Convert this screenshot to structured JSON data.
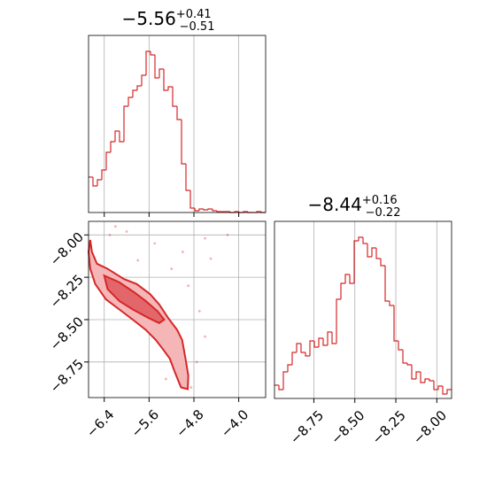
{
  "chart_data": [
    {
      "type": "histogram",
      "title": "−5.56",
      "title_upper": "+0.41",
      "title_lower": "−0.51",
      "color": "#d62728",
      "bins": [
        -6.68,
        -6.601,
        -6.522,
        -6.443,
        -6.364,
        -6.285,
        -6.206,
        -6.127,
        -6.048,
        -5.969,
        -5.89,
        -5.811,
        -5.732,
        -5.653,
        -5.574,
        -5.495,
        -5.416,
        -5.337,
        -5.258,
        -5.179,
        -5.1,
        -5.021,
        -4.942,
        -4.863,
        -4.784,
        -4.705,
        -4.626,
        -4.547,
        -4.468,
        -4.389,
        -4.31,
        -4.231,
        -4.152,
        -4.073,
        -3.994,
        -3.915,
        -3.836,
        -3.757,
        -3.678,
        -3.599,
        -3.52
      ],
      "counts": [
        40,
        30,
        37,
        48,
        68,
        80,
        92,
        80,
        120,
        130,
        138,
        143,
        155,
        182,
        178,
        152,
        162,
        138,
        142,
        120,
        105,
        55,
        25,
        5,
        2,
        4,
        3,
        4,
        2,
        1,
        1,
        1,
        0,
        1,
        0,
        1,
        0,
        0,
        1,
        0
      ],
      "xlim": [
        -6.68,
        -3.52
      ],
      "ylim": [
        0,
        200
      ],
      "xticks": [
        -6.4,
        -5.6,
        -4.8,
        -4.0
      ],
      "grid": true
    },
    {
      "type": "contour",
      "color": "#d62728",
      "contours": [
        {
          "x": [
            -6.65,
            -6.62,
            -6.53,
            -6.34,
            -6.05,
            -5.82,
            -5.58,
            -5.42,
            -5.26,
            -5.1,
            -5.01,
            -4.95,
            -4.9,
            -4.91,
            -5.03,
            -5.14,
            -5.23,
            -5.34,
            -5.48,
            -5.66,
            -5.89,
            -6.13,
            -6.37,
            -6.56,
            -6.65,
            -6.68
          ],
          "y": [
            -8.03,
            -8.1,
            -8.17,
            -8.2,
            -8.26,
            -8.29,
            -8.35,
            -8.41,
            -8.49,
            -8.56,
            -8.62,
            -8.73,
            -8.83,
            -8.91,
            -8.9,
            -8.81,
            -8.73,
            -8.68,
            -8.62,
            -8.56,
            -8.5,
            -8.44,
            -8.38,
            -8.29,
            -8.2,
            -8.1
          ]
        },
        {
          "x": [
            -6.4,
            -6.13,
            -5.86,
            -5.66,
            -5.45,
            -5.33,
            -5.42,
            -5.61,
            -5.89,
            -6.13,
            -6.34
          ],
          "y": [
            -8.24,
            -8.28,
            -8.34,
            -8.39,
            -8.45,
            -8.5,
            -8.52,
            -8.49,
            -8.44,
            -8.39,
            -8.32
          ]
        }
      ],
      "points": {
        "x": [
          -6.0,
          -5.5,
          -5.0,
          -4.6,
          -4.2,
          -5.8,
          -5.2,
          -4.9,
          -4.7,
          -4.6,
          -4.75,
          -4.85,
          -5.3,
          -6.3,
          -6.2,
          -4.5
        ],
        "y": [
          -7.98,
          -8.05,
          -8.1,
          -8.02,
          -8.0,
          -8.15,
          -8.2,
          -8.3,
          -8.45,
          -8.6,
          -8.75,
          -8.9,
          -8.85,
          -8.0,
          -7.95,
          -8.14
        ]
      },
      "xlim": [
        -6.68,
        -3.52
      ],
      "ylim": [
        -8.96,
        -7.92
      ],
      "xticks": [
        {
          "value": -6.4,
          "label": "−6.4"
        },
        {
          "value": -5.6,
          "label": "−5.6"
        },
        {
          "value": -4.8,
          "label": "−4.8"
        },
        {
          "value": -4.0,
          "label": "−4.0"
        }
      ],
      "yticks": [
        {
          "value": -8.0,
          "label": "−8.00"
        },
        {
          "value": -8.25,
          "label": "−8.25"
        },
        {
          "value": -8.5,
          "label": "−8.50"
        },
        {
          "value": -8.75,
          "label": "−8.75"
        }
      ],
      "grid": true
    },
    {
      "type": "histogram",
      "title": "−8.44",
      "title_upper": "+0.16",
      "title_lower": "−0.22",
      "color": "#d62728",
      "bins": [
        -8.99,
        -8.963,
        -8.936,
        -8.909,
        -8.882,
        -8.855,
        -8.828,
        -8.801,
        -8.774,
        -8.747,
        -8.72,
        -8.693,
        -8.666,
        -8.639,
        -8.612,
        -8.585,
        -8.558,
        -8.531,
        -8.504,
        -8.477,
        -8.45,
        -8.423,
        -8.396,
        -8.369,
        -8.342,
        -8.315,
        -8.288,
        -8.261,
        -8.234,
        -8.207,
        -8.18,
        -8.153,
        -8.126,
        -8.099,
        -8.072,
        -8.045,
        -8.018,
        -7.991,
        -7.964,
        -7.937,
        -7.91
      ],
      "counts": [
        15,
        10,
        30,
        38,
        52,
        62,
        52,
        48,
        65,
        58,
        68,
        60,
        75,
        62,
        112,
        130,
        140,
        130,
        178,
        182,
        175,
        160,
        170,
        158,
        150,
        110,
        105,
        65,
        55,
        40,
        38,
        22,
        30,
        18,
        22,
        20,
        10,
        14,
        5,
        10
      ],
      "xlim": [
        -8.99,
        -7.91
      ],
      "ylim": [
        0,
        200
      ],
      "xticks": [
        {
          "value": -8.75,
          "label": "−8.75"
        },
        {
          "value": -8.5,
          "label": "−8.50"
        },
        {
          "value": -8.25,
          "label": "−8.25"
        },
        {
          "value": -8.0,
          "label": "−8.00"
        }
      ],
      "grid": true
    }
  ]
}
